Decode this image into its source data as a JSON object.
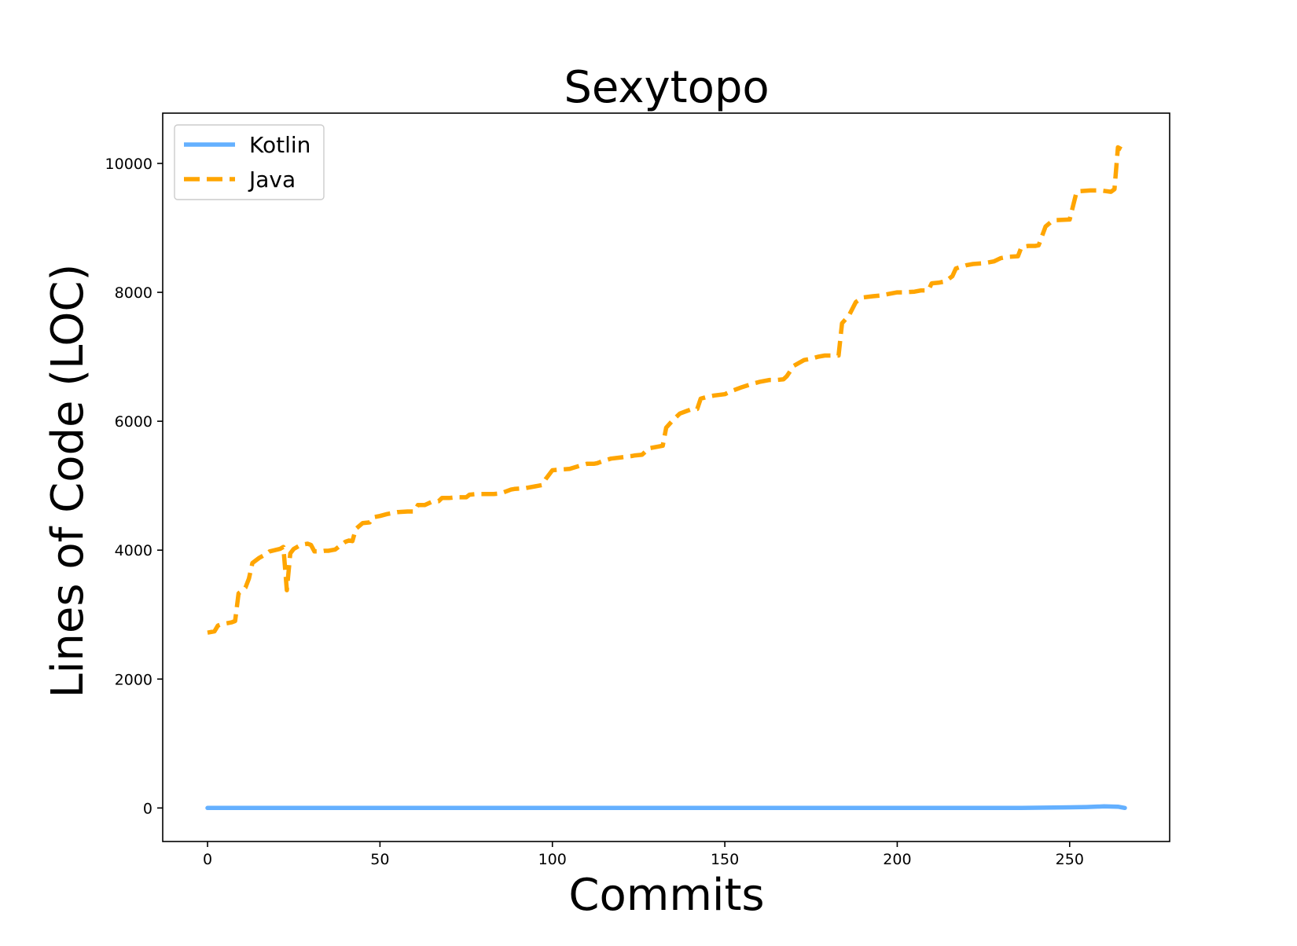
{
  "chart_data": {
    "type": "line",
    "title": "Sexytopo",
    "xlabel": "Commits",
    "ylabel": "Lines of Code (LOC)",
    "xlim": [
      -13,
      279
    ],
    "ylim": [
      -520,
      10780
    ],
    "xticks": [
      0,
      50,
      100,
      150,
      200,
      250
    ],
    "yticks": [
      0,
      2000,
      4000,
      6000,
      8000,
      10000
    ],
    "grid": false,
    "legend_position": "upper left",
    "series": [
      {
        "name": "Kotlin",
        "color": "#64b0ff",
        "style": "solid",
        "x": [
          0,
          50,
          100,
          150,
          200,
          236,
          250,
          255,
          260,
          264,
          266
        ],
        "y": [
          0,
          0,
          0,
          0,
          0,
          0,
          10,
          15,
          25,
          20,
          0
        ]
      },
      {
        "name": "Java",
        "color": "#ffa500",
        "style": "dashed",
        "x": [
          0,
          2,
          3,
          4,
          5,
          7,
          8,
          9,
          10,
          11,
          12,
          13,
          15,
          17,
          18,
          21,
          22,
          23,
          24,
          25,
          27,
          29,
          30,
          31,
          33,
          34,
          35,
          36,
          37,
          40,
          41,
          42,
          43,
          45,
          47,
          48,
          50,
          52,
          55,
          58,
          60,
          61,
          63,
          65,
          67,
          68,
          70,
          72,
          75,
          76,
          78,
          80,
          83,
          85,
          88,
          89,
          92,
          95,
          96,
          97,
          98,
          100,
          102,
          105,
          108,
          110,
          112,
          113,
          115,
          117,
          120,
          123,
          124,
          126,
          128,
          132,
          133,
          135,
          137,
          139,
          140,
          142,
          143,
          145,
          147,
          150,
          152,
          155,
          158,
          160,
          163,
          165,
          167,
          168,
          170,
          173,
          175,
          177,
          179,
          183,
          184,
          186,
          188,
          190,
          193,
          195,
          198,
          200,
          202,
          205,
          207,
          209,
          210,
          212,
          214,
          216,
          217,
          220,
          222,
          225,
          228,
          230,
          232,
          235,
          236,
          238,
          240,
          241,
          243,
          245,
          246,
          250,
          252,
          253,
          256,
          259,
          262,
          263,
          264,
          265
        ],
        "y": [
          2720,
          2740,
          2830,
          2850,
          2860,
          2880,
          2900,
          3330,
          3370,
          3420,
          3560,
          3800,
          3880,
          3940,
          3980,
          4020,
          4050,
          3380,
          3950,
          4020,
          4080,
          4100,
          4080,
          3980,
          3980,
          3990,
          3990,
          4000,
          4010,
          4130,
          4150,
          4140,
          4330,
          4420,
          4430,
          4510,
          4530,
          4560,
          4590,
          4600,
          4600,
          4700,
          4700,
          4750,
          4760,
          4810,
          4810,
          4820,
          4820,
          4860,
          4870,
          4870,
          4870,
          4880,
          4940,
          4950,
          4960,
          4990,
          5000,
          5010,
          5100,
          5240,
          5250,
          5260,
          5310,
          5340,
          5340,
          5350,
          5390,
          5420,
          5440,
          5460,
          5470,
          5480,
          5580,
          5620,
          5900,
          6020,
          6120,
          6160,
          6180,
          6190,
          6350,
          6380,
          6400,
          6420,
          6470,
          6530,
          6580,
          6610,
          6640,
          6640,
          6650,
          6700,
          6860,
          6950,
          6970,
          7000,
          7020,
          7020,
          7520,
          7640,
          7850,
          7920,
          7940,
          7950,
          7980,
          8000,
          8000,
          8010,
          8030,
          8030,
          8140,
          8150,
          8170,
          8250,
          8370,
          8420,
          8440,
          8450,
          8480,
          8530,
          8550,
          8560,
          8700,
          8720,
          8720,
          8730,
          9020,
          9110,
          9120,
          9130,
          9560,
          9570,
          9580,
          9580,
          9560,
          9600,
          10250,
          10220
        ]
      }
    ]
  }
}
